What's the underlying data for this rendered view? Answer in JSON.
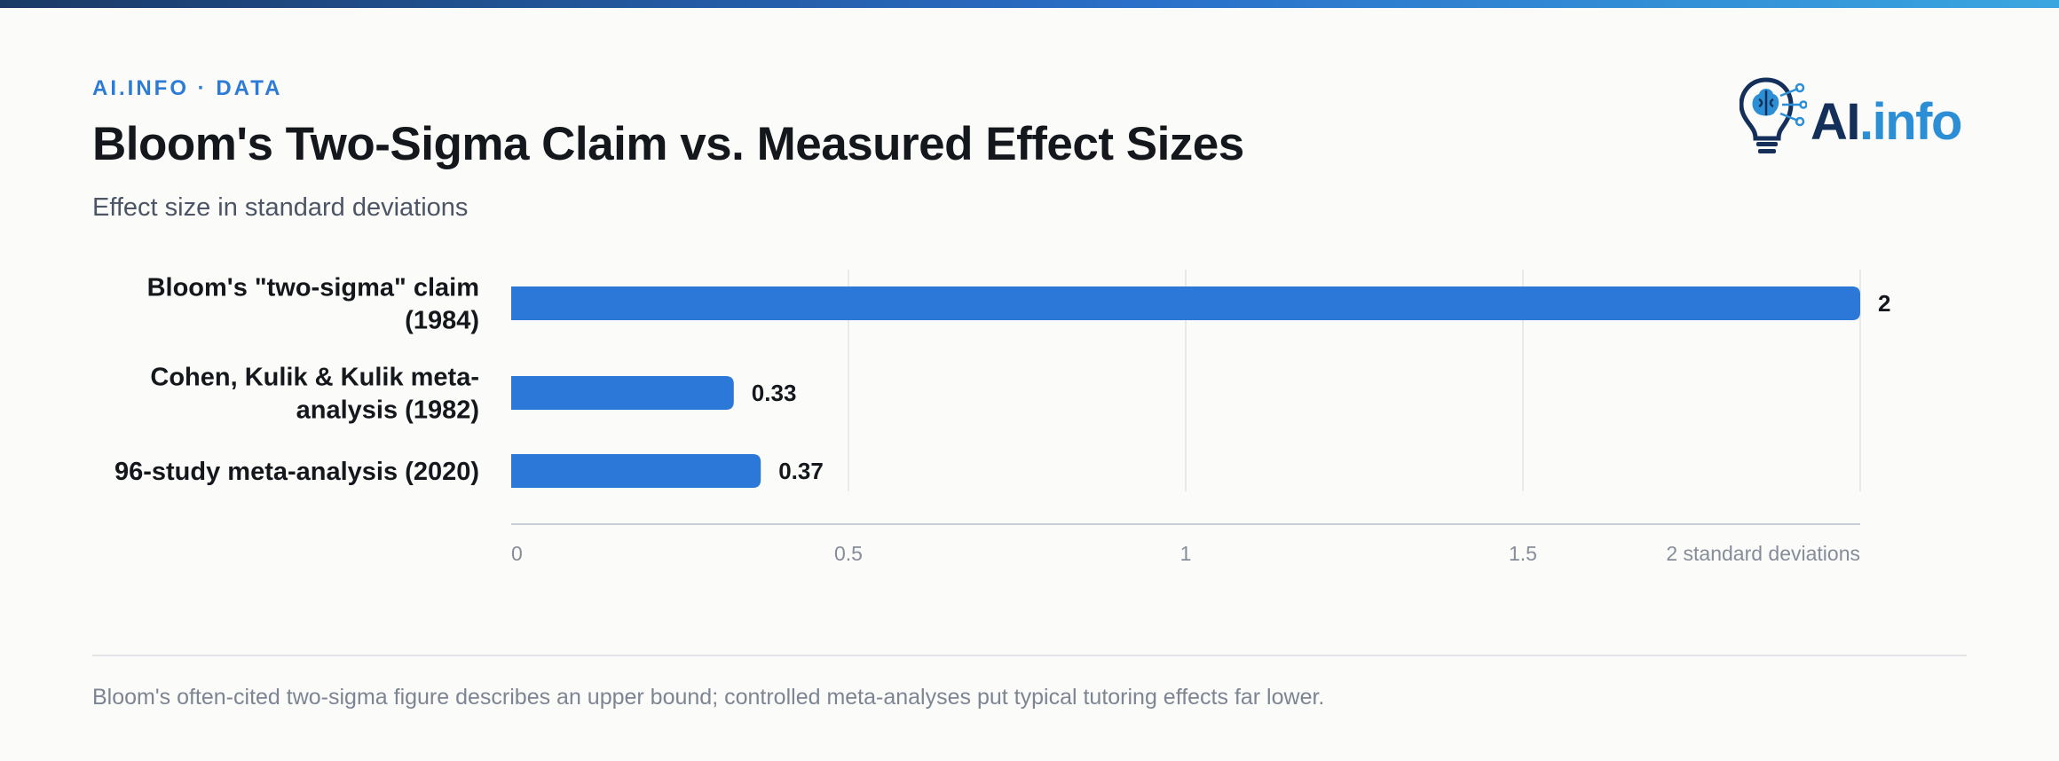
{
  "header": {
    "kicker": "AI.INFO · DATA",
    "title": "Bloom's Two-Sigma Claim vs. Measured Effect Sizes",
    "subtitle": "Effect size in standard deviations"
  },
  "logo": {
    "text_ai": "AI",
    "text_info": ".info",
    "icon": "lightbulb-brain-icon"
  },
  "colors": {
    "accent": "#2c7bd6",
    "bar": "#2b78d8",
    "title": "#14171c",
    "grid": "#e2e4e8"
  },
  "chart_data": {
    "type": "bar",
    "orientation": "horizontal",
    "categories": [
      [
        "Bloom's \"two-sigma\" claim",
        "(1984)"
      ],
      [
        "Cohen, Kulik & Kulik meta-",
        "analysis (1982)"
      ],
      [
        "96-study meta-analysis (2020)"
      ]
    ],
    "values": [
      2,
      0.33,
      0.37
    ],
    "value_labels": [
      "2",
      "0.33",
      "0.37"
    ],
    "xlim": [
      0,
      2
    ],
    "x_ticks": [
      0,
      0.5,
      1,
      1.5,
      2
    ],
    "x_tick_labels": [
      "0",
      "0.5",
      "1",
      "1.5",
      "2 standard deviations"
    ],
    "grid": true,
    "legend": "none"
  },
  "footer": {
    "note": "Bloom's often-cited two-sigma figure describes an upper bound; controlled meta-analyses put typical tutoring effects far lower."
  }
}
